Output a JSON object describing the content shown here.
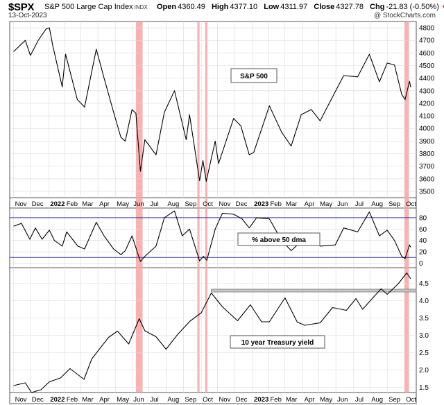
{
  "header": {
    "symbol": "$SPX",
    "description": "S&P 500 Large Cap Index",
    "exchange": "INDX",
    "date": "13-Oct-2023",
    "open_label": "Open",
    "open": "4360.49",
    "high_label": "High",
    "high": "4377.10",
    "low_label": "Low",
    "low": "4311.97",
    "close_label": "Close",
    "close": "4327.78",
    "chg_label": "Chg",
    "chg": "-21.83 (-0.50%)",
    "chg_marker": "▼",
    "credit": "@ StockCharts.com"
  },
  "colors": {
    "highlight": "#f4a6a6",
    "line": "#000000",
    "ref_line": "#3b3b8f",
    "resistance_band": "#c8c8c8",
    "grid": "#d9d9d9"
  },
  "chart_data": [
    {
      "type": "line",
      "label": "S&P 500",
      "ylim": [
        3450,
        4850
      ],
      "yticks": [
        3500,
        3600,
        3700,
        3800,
        3900,
        4000,
        4100,
        4200,
        4300,
        4400,
        4500,
        4600,
        4700,
        4800
      ],
      "points": [
        [
          "2021-11-01",
          4610
        ],
        [
          "2021-11-22",
          4700
        ],
        [
          "2021-12-01",
          4580
        ],
        [
          "2021-12-15",
          4700
        ],
        [
          "2021-12-29",
          4790
        ],
        [
          "2022-01-04",
          4800
        ],
        [
          "2022-01-10",
          4660
        ],
        [
          "2022-01-27",
          4330
        ],
        [
          "2022-02-02",
          4590
        ],
        [
          "2022-02-23",
          4230
        ],
        [
          "2022-03-08",
          4170
        ],
        [
          "2022-03-29",
          4630
        ],
        [
          "2022-04-12",
          4400
        ],
        [
          "2022-04-29",
          4130
        ],
        [
          "2022-05-12",
          3930
        ],
        [
          "2022-05-20",
          3900
        ],
        [
          "2022-06-01",
          4150
        ],
        [
          "2022-06-08",
          4120
        ],
        [
          "2022-06-16",
          3660
        ],
        [
          "2022-06-24",
          3910
        ],
        [
          "2022-07-14",
          3790
        ],
        [
          "2022-07-29",
          4130
        ],
        [
          "2022-08-16",
          4300
        ],
        [
          "2022-09-06",
          3910
        ],
        [
          "2022-09-12",
          4110
        ],
        [
          "2022-09-30",
          3585
        ],
        [
          "2022-10-06",
          3745
        ],
        [
          "2022-10-12",
          3580
        ],
        [
          "2022-10-28",
          3900
        ],
        [
          "2022-11-03",
          3720
        ],
        [
          "2022-11-30",
          4080
        ],
        [
          "2022-12-13",
          4020
        ],
        [
          "2022-12-28",
          3790
        ],
        [
          "2023-01-05",
          3810
        ],
        [
          "2023-02-02",
          4180
        ],
        [
          "2023-02-24",
          3970
        ],
        [
          "2023-03-13",
          3860
        ],
        [
          "2023-03-31",
          4110
        ],
        [
          "2023-04-18",
          4150
        ],
        [
          "2023-05-04",
          4060
        ],
        [
          "2023-05-19",
          4190
        ],
        [
          "2023-06-15",
          4420
        ],
        [
          "2023-07-10",
          4410
        ],
        [
          "2023-07-31",
          4590
        ],
        [
          "2023-08-18",
          4370
        ],
        [
          "2023-09-01",
          4520
        ],
        [
          "2023-09-14",
          4505
        ],
        [
          "2023-09-27",
          4270
        ],
        [
          "2023-10-03",
          4230
        ],
        [
          "2023-10-11",
          4375
        ],
        [
          "2023-10-13",
          4328
        ]
      ]
    },
    {
      "type": "line",
      "label": "% above 50 dma",
      "ylim": [
        -8,
        97
      ],
      "yticks": [
        0,
        20,
        40,
        60,
        80
      ],
      "reference_lines": [
        10,
        80
      ],
      "points": [
        [
          "2021-11-01",
          65
        ],
        [
          "2021-11-15",
          70
        ],
        [
          "2021-11-30",
          42
        ],
        [
          "2021-12-10",
          62
        ],
        [
          "2021-12-22",
          42
        ],
        [
          "2022-01-04",
          58
        ],
        [
          "2022-01-13",
          40
        ],
        [
          "2022-01-27",
          30
        ],
        [
          "2022-02-04",
          55
        ],
        [
          "2022-02-24",
          30
        ],
        [
          "2022-03-08",
          25
        ],
        [
          "2022-03-29",
          72
        ],
        [
          "2022-04-12",
          48
        ],
        [
          "2022-04-29",
          25
        ],
        [
          "2022-05-12",
          15
        ],
        [
          "2022-05-20",
          22
        ],
        [
          "2022-06-01",
          48
        ],
        [
          "2022-06-16",
          3
        ],
        [
          "2022-06-24",
          12
        ],
        [
          "2022-07-14",
          30
        ],
        [
          "2022-07-29",
          80
        ],
        [
          "2022-08-16",
          92
        ],
        [
          "2022-08-30",
          48
        ],
        [
          "2022-09-12",
          60
        ],
        [
          "2022-09-30",
          4
        ],
        [
          "2022-10-07",
          12
        ],
        [
          "2022-10-13",
          5
        ],
        [
          "2022-10-28",
          60
        ],
        [
          "2022-11-10",
          88
        ],
        [
          "2022-11-30",
          86
        ],
        [
          "2022-12-15",
          78
        ],
        [
          "2022-12-28",
          62
        ],
        [
          "2023-01-10",
          80
        ],
        [
          "2023-02-02",
          78
        ],
        [
          "2023-02-24",
          40
        ],
        [
          "2023-03-13",
          22
        ],
        [
          "2023-03-31",
          38
        ],
        [
          "2023-04-18",
          45
        ],
        [
          "2023-05-04",
          30
        ],
        [
          "2023-05-31",
          32
        ],
        [
          "2023-06-15",
          62
        ],
        [
          "2023-07-10",
          55
        ],
        [
          "2023-07-31",
          90
        ],
        [
          "2023-08-18",
          48
        ],
        [
          "2023-09-01",
          58
        ],
        [
          "2023-09-14",
          40
        ],
        [
          "2023-09-27",
          12
        ],
        [
          "2023-10-03",
          8
        ],
        [
          "2023-10-11",
          32
        ],
        [
          "2023-10-13",
          28
        ]
      ]
    },
    {
      "type": "line",
      "label": "10 year Treasury yield",
      "ylim": [
        1.35,
        4.95
      ],
      "yticks": [
        1.5,
        2.0,
        2.5,
        3.0,
        3.5,
        4.0,
        4.5
      ],
      "resistance_band": [
        4.25,
        4.33
      ],
      "points": [
        [
          "2021-11-01",
          1.55
        ],
        [
          "2021-11-22",
          1.63
        ],
        [
          "2021-12-03",
          1.35
        ],
        [
          "2021-12-20",
          1.43
        ],
        [
          "2022-01-04",
          1.66
        ],
        [
          "2022-01-24",
          1.77
        ],
        [
          "2022-02-10",
          2.04
        ],
        [
          "2022-03-07",
          1.73
        ],
        [
          "2022-03-21",
          2.32
        ],
        [
          "2022-04-20",
          2.94
        ],
        [
          "2022-05-06",
          3.12
        ],
        [
          "2022-05-26",
          2.75
        ],
        [
          "2022-06-14",
          3.48
        ],
        [
          "2022-06-24",
          3.13
        ],
        [
          "2022-07-14",
          2.96
        ],
        [
          "2022-08-01",
          2.6
        ],
        [
          "2022-08-22",
          3.03
        ],
        [
          "2022-09-13",
          3.41
        ],
        [
          "2022-10-03",
          3.65
        ],
        [
          "2022-10-21",
          4.22
        ],
        [
          "2022-11-10",
          3.82
        ],
        [
          "2022-12-07",
          3.42
        ],
        [
          "2022-12-30",
          3.88
        ],
        [
          "2023-01-19",
          3.39
        ],
        [
          "2023-02-02",
          3.39
        ],
        [
          "2023-03-02",
          4.08
        ],
        [
          "2023-03-24",
          3.38
        ],
        [
          "2023-04-06",
          3.29
        ],
        [
          "2023-05-04",
          3.36
        ],
        [
          "2023-05-26",
          3.8
        ],
        [
          "2023-06-20",
          3.72
        ],
        [
          "2023-07-07",
          4.06
        ],
        [
          "2023-07-19",
          3.75
        ],
        [
          "2023-08-04",
          4.04
        ],
        [
          "2023-08-21",
          4.34
        ],
        [
          "2023-09-01",
          4.18
        ],
        [
          "2023-09-21",
          4.49
        ],
        [
          "2023-10-06",
          4.8
        ],
        [
          "2023-10-13",
          4.63
        ]
      ]
    }
  ],
  "annotations": {
    "highlights": [
      [
        "2022-06-08",
        "2022-06-20"
      ],
      [
        "2022-09-26",
        "2022-09-30"
      ],
      [
        "2022-10-10",
        "2022-10-14"
      ],
      [
        "2023-10-02",
        "2023-10-10"
      ]
    ],
    "resistance_band_start": "2022-10-21"
  },
  "x_axis": {
    "ticks": [
      {
        "label": "Nov",
        "date": "2021-11-01",
        "bold": false
      },
      {
        "label": "Dec",
        "date": "2021-12-01",
        "bold": false
      },
      {
        "label": "2022",
        "date": "2022-01-03",
        "bold": true
      },
      {
        "label": "Feb",
        "date": "2022-02-01",
        "bold": false
      },
      {
        "label": "Mar",
        "date": "2022-03-01",
        "bold": false
      },
      {
        "label": "Apr",
        "date": "2022-04-01",
        "bold": false
      },
      {
        "label": "May",
        "date": "2022-05-02",
        "bold": false
      },
      {
        "label": "Jun",
        "date": "2022-06-01",
        "bold": false
      },
      {
        "label": "Jul",
        "date": "2022-07-01",
        "bold": false
      },
      {
        "label": "Aug",
        "date": "2022-08-01",
        "bold": false
      },
      {
        "label": "Sep",
        "date": "2022-09-01",
        "bold": false
      },
      {
        "label": "Oct",
        "date": "2022-10-03",
        "bold": false
      },
      {
        "label": "Nov",
        "date": "2022-11-01",
        "bold": false
      },
      {
        "label": "Dec",
        "date": "2022-12-01",
        "bold": false
      },
      {
        "label": "2023",
        "date": "2023-01-03",
        "bold": true
      },
      {
        "label": "Feb",
        "date": "2023-02-01",
        "bold": false
      },
      {
        "label": "Mar",
        "date": "2023-03-01",
        "bold": false
      },
      {
        "label": "Apr",
        "date": "2023-04-03",
        "bold": false
      },
      {
        "label": "May",
        "date": "2023-05-01",
        "bold": false
      },
      {
        "label": "Jun",
        "date": "2023-06-01",
        "bold": false
      },
      {
        "label": "Jul",
        "date": "2023-07-03",
        "bold": false
      },
      {
        "label": "Aug",
        "date": "2023-08-01",
        "bold": false
      },
      {
        "label": "Sep",
        "date": "2023-09-01",
        "bold": false
      },
      {
        "label": "Oct",
        "date": "2023-10-02",
        "bold": false
      }
    ],
    "range": [
      "2021-10-25",
      "2023-10-23"
    ]
  }
}
